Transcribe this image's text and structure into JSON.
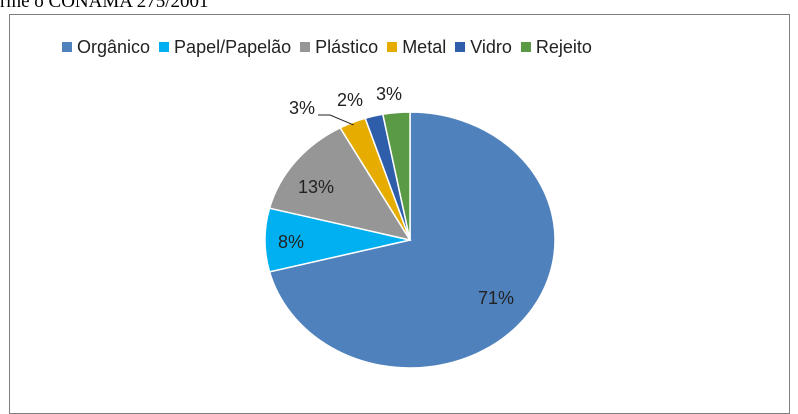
{
  "page": {
    "header_fragment": "rme o CONAMA 275/2001"
  },
  "chart_data": {
    "type": "pie",
    "title": "",
    "legend_position": "top",
    "categories": [
      "Orgânico",
      "Papel/Papelão",
      "Plástico",
      "Metal",
      "Vidro",
      "Rejeito"
    ],
    "values": [
      71,
      8,
      13,
      3,
      2,
      3
    ],
    "labels": [
      "71%",
      "8%",
      "13%",
      "3%",
      "2%",
      "3%"
    ],
    "colors": [
      "#4f81bd",
      "#00b0f0",
      "#969696",
      "#e6ad00",
      "#2e5daa",
      "#5a9a45"
    ]
  }
}
